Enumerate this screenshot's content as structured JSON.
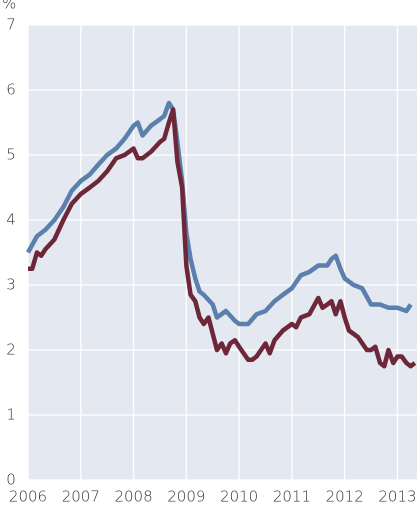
{
  "chart_data": {
    "type": "line",
    "y_label": "%",
    "xlim": [
      2006,
      2013.37
    ],
    "xticks": [
      2006,
      2007,
      2008,
      2009,
      2010,
      2011,
      2012,
      2013
    ],
    "ylim": [
      0,
      7
    ],
    "yticks": [
      0,
      1,
      2,
      3,
      4,
      5,
      6,
      7
    ],
    "grid": true,
    "series": [
      {
        "color": "#5b80ad",
        "x": [
          2006.0,
          2006.17,
          2006.33,
          2006.5,
          2006.67,
          2006.83,
          2007.0,
          2007.17,
          2007.33,
          2007.5,
          2007.67,
          2007.83,
          2008.0,
          2008.08,
          2008.17,
          2008.33,
          2008.5,
          2008.58,
          2008.67,
          2008.75,
          2008.83,
          2008.92,
          2009.0,
          2009.08,
          2009.17,
          2009.25,
          2009.33,
          2009.5,
          2009.58,
          2009.75,
          2009.92,
          2010.0,
          2010.17,
          2010.33,
          2010.5,
          2010.67,
          2010.83,
          2011.0,
          2011.17,
          2011.33,
          2011.5,
          2011.67,
          2011.75,
          2011.83,
          2011.92,
          2012.0,
          2012.17,
          2012.33,
          2012.5,
          2012.67,
          2012.83,
          2013.0,
          2013.17,
          2013.25
        ],
        "values": [
          3.5,
          3.75,
          3.85,
          4.0,
          4.2,
          4.45,
          4.6,
          4.7,
          4.85,
          5.0,
          5.1,
          5.25,
          5.45,
          5.5,
          5.3,
          5.45,
          5.55,
          5.6,
          5.8,
          5.7,
          5.2,
          4.6,
          3.8,
          3.4,
          3.1,
          2.9,
          2.85,
          2.7,
          2.5,
          2.6,
          2.45,
          2.4,
          2.4,
          2.55,
          2.6,
          2.75,
          2.85,
          2.95,
          3.15,
          3.2,
          3.3,
          3.3,
          3.4,
          3.45,
          3.25,
          3.1,
          3.0,
          2.95,
          2.7,
          2.7,
          2.65,
          2.65,
          2.6,
          2.7
        ]
      },
      {
        "color": "#6e2639",
        "x": [
          2006.0,
          2006.08,
          2006.17,
          2006.25,
          2006.33,
          2006.5,
          2006.67,
          2006.83,
          2007.0,
          2007.17,
          2007.33,
          2007.5,
          2007.67,
          2007.83,
          2008.0,
          2008.08,
          2008.17,
          2008.33,
          2008.5,
          2008.58,
          2008.67,
          2008.75,
          2008.83,
          2008.92,
          2009.0,
          2009.08,
          2009.17,
          2009.25,
          2009.33,
          2009.42,
          2009.5,
          2009.58,
          2009.67,
          2009.75,
          2009.83,
          2009.92,
          2010.0,
          2010.17,
          2010.25,
          2010.33,
          2010.5,
          2010.58,
          2010.67,
          2010.83,
          2011.0,
          2011.08,
          2011.17,
          2011.33,
          2011.5,
          2011.58,
          2011.67,
          2011.75,
          2011.83,
          2011.92,
          2012.0,
          2012.08,
          2012.25,
          2012.42,
          2012.5,
          2012.58,
          2012.67,
          2012.75,
          2012.83,
          2012.92,
          2013.0,
          2013.08,
          2013.17,
          2013.25,
          2013.33
        ],
        "values": [
          3.25,
          3.25,
          3.5,
          3.45,
          3.55,
          3.7,
          4.0,
          4.25,
          4.4,
          4.5,
          4.6,
          4.75,
          4.95,
          5.0,
          5.1,
          4.95,
          4.95,
          5.05,
          5.2,
          5.25,
          5.5,
          5.7,
          4.9,
          4.5,
          3.3,
          2.85,
          2.75,
          2.5,
          2.4,
          2.5,
          2.25,
          2.0,
          2.1,
          1.95,
          2.1,
          2.15,
          2.05,
          1.85,
          1.85,
          1.9,
          2.1,
          1.95,
          2.15,
          2.3,
          2.4,
          2.35,
          2.5,
          2.55,
          2.8,
          2.65,
          2.7,
          2.75,
          2.55,
          2.75,
          2.5,
          2.3,
          2.2,
          2.0,
          2.0,
          2.05,
          1.8,
          1.75,
          2.0,
          1.8,
          1.9,
          1.9,
          1.8,
          1.75,
          1.8
        ]
      }
    ]
  }
}
